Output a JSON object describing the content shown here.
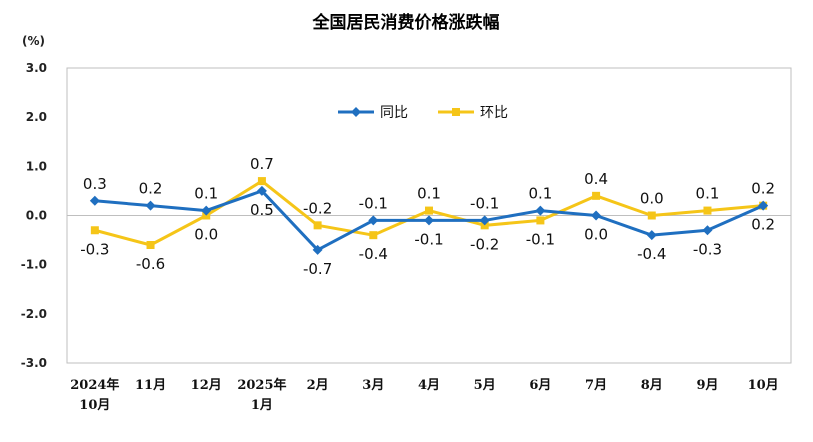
{
  "chart_data": {
    "type": "line",
    "title": "全国居民消费价格涨跌幅",
    "ylabel": "(%)",
    "ylim": [
      -3,
      3
    ],
    "yticks": [
      "3.0",
      "2.0",
      "1.0",
      "0.0",
      "-1.0",
      "-2.0",
      "-3.0"
    ],
    "categories": [
      [
        "2024年",
        "10月"
      ],
      [
        "11月"
      ],
      [
        "12月"
      ],
      [
        "2025年",
        "1月"
      ],
      [
        "2月"
      ],
      [
        "3月"
      ],
      [
        "4月"
      ],
      [
        "5月"
      ],
      [
        "6月"
      ],
      [
        "7月"
      ],
      [
        "8月"
      ],
      [
        "9月"
      ],
      [
        "10月"
      ]
    ],
    "legend_position": "top",
    "series": [
      {
        "name": "同比",
        "color": "#1f6fc0",
        "values": [
          0.3,
          0.2,
          0.1,
          0.5,
          -0.7,
          -0.1,
          -0.1,
          -0.1,
          0.1,
          0.0,
          -0.4,
          -0.3,
          0.2
        ],
        "labels": [
          "0.3",
          "0.2",
          "0.1",
          "0.5",
          "-0.7",
          "-0.1",
          "-0.1",
          "-0.1",
          "0.1",
          "0.0",
          "-0.4",
          "-0.3",
          "0.2"
        ]
      },
      {
        "name": "环比",
        "color": "#f5c518",
        "values": [
          -0.3,
          -0.6,
          0.0,
          0.7,
          -0.2,
          -0.4,
          0.1,
          -0.2,
          -0.1,
          0.4,
          0.0,
          0.1,
          0.2
        ],
        "labels": [
          "-0.3",
          "-0.6",
          "0.0",
          "0.7",
          "-0.2",
          "-0.4",
          "0.1",
          "-0.2",
          "-0.1",
          "0.4",
          "0.0",
          "0.1",
          "0.2"
        ]
      }
    ]
  }
}
